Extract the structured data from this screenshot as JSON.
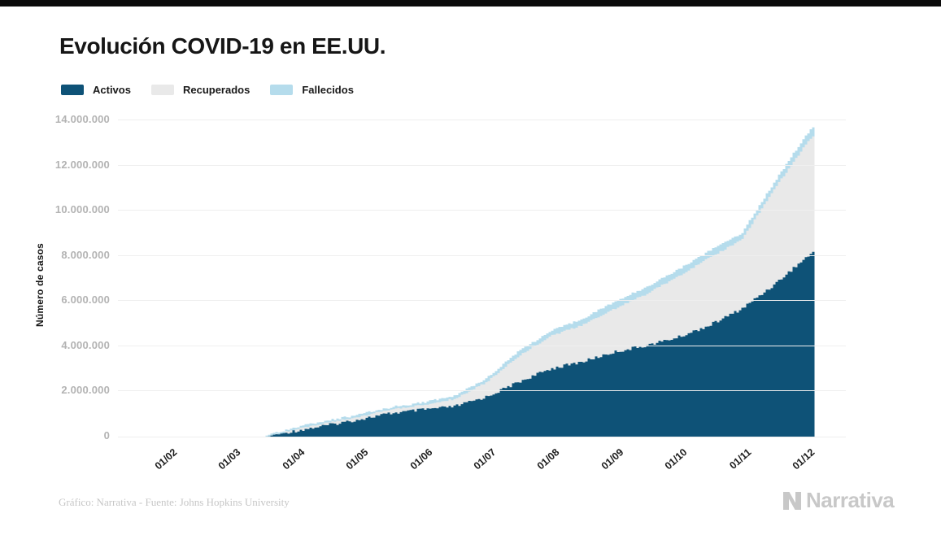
{
  "page": {
    "background": "#ffffff",
    "top_bar_color": "#0b0b0b"
  },
  "header": {
    "title": "Evolución COVID-19 en EE.UU."
  },
  "legend": [
    {
      "label": "Activos",
      "color": "#0e5277"
    },
    {
      "label": "Recuperados",
      "color": "#e9e9e9"
    },
    {
      "label": "Fallecidos",
      "color": "#b5dcec"
    }
  ],
  "chart_data": {
    "type": "area",
    "stacked": true,
    "title": "Evolución COVID-19 en EE.UU.",
    "xlabel": "",
    "ylabel": "Número de casos",
    "ylim": [
      0,
      14000000
    ],
    "grid": "horizontal",
    "legend_position": "top-left",
    "x_unit": "month index: 1 = 01/02, 11 = 01/12 (dd/mm of 2020)",
    "x": [
      2.55,
      3.0,
      3.5,
      4.0,
      4.5,
      5.0,
      5.5,
      6.0,
      6.5,
      7.0,
      7.5,
      8.0,
      8.5,
      9.0,
      9.5,
      10.0,
      10.5,
      11.0,
      11.15
    ],
    "series": [
      {
        "name": "Activos",
        "color": "#0e5277",
        "values": [
          20000,
          250000,
          500000,
          760000,
          1030000,
          1190000,
          1330000,
          1760000,
          2410000,
          3000000,
          3310000,
          3740000,
          4030000,
          4390000,
          4930000,
          5650000,
          6700000,
          7900000,
          8240000
        ]
      },
      {
        "name": "Recuperados",
        "color": "#e9e9e9",
        "values": [
          10000,
          70000,
          120000,
          120000,
          190000,
          210000,
          340000,
          650000,
          1150000,
          1450000,
          1620000,
          1910000,
          2270000,
          2700000,
          2990000,
          3060000,
          4200000,
          5000000,
          5150000
        ]
      },
      {
        "name": "Fallecidos",
        "color": "#b5dcec",
        "values": [
          20000,
          100000,
          80000,
          90000,
          80000,
          110000,
          130000,
          180000,
          220000,
          200000,
          290000,
          300000,
          320000,
          290000,
          320000,
          290000,
          300000,
          400000,
          410000
        ]
      }
    ],
    "x_ticks": [
      {
        "m": 1,
        "label": "01/02"
      },
      {
        "m": 2,
        "label": "01/03"
      },
      {
        "m": 3,
        "label": "01/04"
      },
      {
        "m": 4,
        "label": "01/05"
      },
      {
        "m": 5,
        "label": "01/06"
      },
      {
        "m": 6,
        "label": "01/07"
      },
      {
        "m": 7,
        "label": "01/08"
      },
      {
        "m": 8,
        "label": "01/09"
      },
      {
        "m": 9,
        "label": "01/10"
      },
      {
        "m": 10,
        "label": "01/11"
      },
      {
        "m": 11,
        "label": "01/12"
      }
    ],
    "y_ticks": [
      {
        "v": 0,
        "label": "0"
      },
      {
        "v": 2000000,
        "label": "2.000.000"
      },
      {
        "v": 4000000,
        "label": "4.000.000"
      },
      {
        "v": 6000000,
        "label": "6.000.000"
      },
      {
        "v": 8000000,
        "label": "8.000.000"
      },
      {
        "v": 10000000,
        "label": "10.000.000"
      },
      {
        "v": 12000000,
        "label": "12.000.000"
      },
      {
        "v": 14000000,
        "label": "14.000.000"
      }
    ]
  },
  "footer": {
    "source": "Gráfico: Narrativa - Fuente: Johns Hopkins University",
    "brand": "Narrativa",
    "brand_color": "#c8c8c8"
  }
}
